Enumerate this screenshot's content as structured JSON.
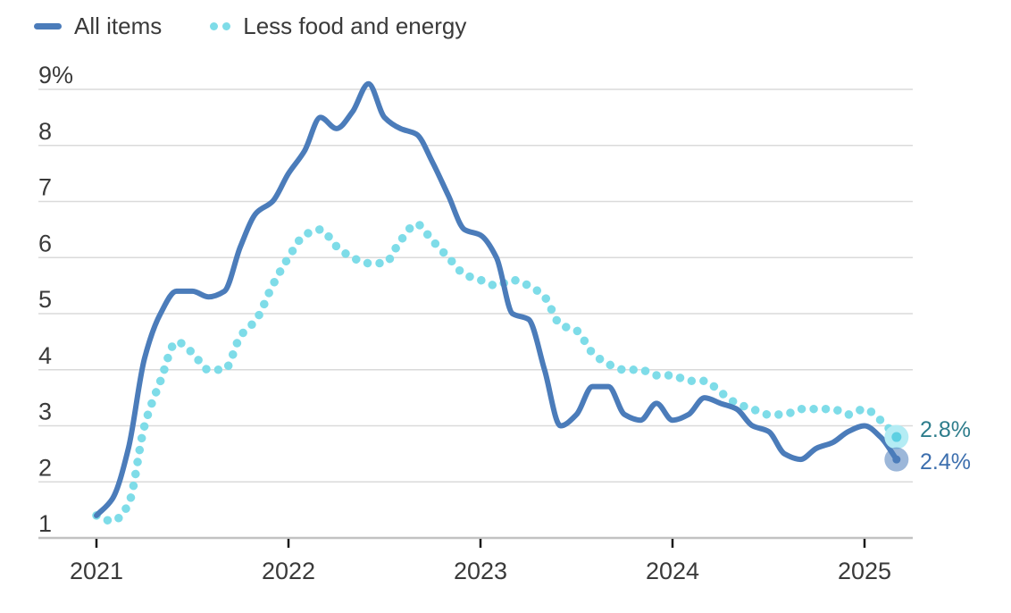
{
  "chart_data": {
    "type": "line",
    "title": "",
    "x": {
      "unit": "month",
      "start": "2021-01",
      "end": "2025-03",
      "n_points": 51,
      "tick_labels": [
        "2021",
        "2022",
        "2023",
        "2024",
        "2025"
      ]
    },
    "y": {
      "min": 1,
      "max": 9,
      "tick_values": [
        1,
        2,
        3,
        4,
        5,
        6,
        7,
        8,
        9
      ],
      "tick_labels": [
        "1",
        "2",
        "3",
        "4",
        "5",
        "6",
        "7",
        "8",
        "9%"
      ],
      "grid": true
    },
    "legend": {
      "position": "top-left"
    },
    "series": [
      {
        "name": "All items",
        "style": "solid",
        "color": "#4b7cba",
        "label_color": "#3d6fae",
        "end_label": "2.4%",
        "end_value": 2.4,
        "values": [
          1.4,
          1.7,
          2.6,
          4.2,
          5.0,
          5.4,
          5.4,
          5.3,
          5.4,
          6.2,
          6.8,
          7.0,
          7.5,
          7.9,
          8.5,
          8.3,
          8.6,
          9.1,
          8.5,
          8.3,
          8.2,
          7.7,
          7.1,
          6.5,
          6.4,
          6.0,
          5.0,
          4.9,
          4.0,
          3.0,
          3.2,
          3.7,
          3.7,
          3.2,
          3.1,
          3.4,
          3.1,
          3.2,
          3.5,
          3.4,
          3.3,
          3.0,
          2.9,
          2.5,
          2.4,
          2.6,
          2.7,
          2.9,
          3.0,
          2.8,
          2.4
        ]
      },
      {
        "name": "Less food and energy",
        "style": "dotted",
        "color": "#7edce8",
        "marker_outer_color": "#b4ecf4",
        "marker_inner_color": "#5ed0e2",
        "label_color": "#2e7d8c",
        "end_label": "2.8%",
        "end_value": 2.8,
        "values": [
          1.4,
          1.3,
          1.6,
          3.0,
          3.8,
          4.5,
          4.3,
          4.0,
          4.0,
          4.6,
          4.9,
          5.5,
          6.0,
          6.4,
          6.5,
          6.2,
          6.0,
          5.9,
          5.9,
          6.3,
          6.6,
          6.3,
          6.0,
          5.7,
          5.6,
          5.5,
          5.6,
          5.5,
          5.3,
          4.8,
          4.7,
          4.3,
          4.1,
          4.0,
          4.0,
          3.9,
          3.9,
          3.8,
          3.8,
          3.6,
          3.4,
          3.3,
          3.2,
          3.2,
          3.3,
          3.3,
          3.3,
          3.2,
          3.3,
          3.1,
          2.8
        ]
      }
    ]
  },
  "colors": {
    "background": "#ffffff",
    "grid": "#dadada",
    "axis_line": "#c2c2c2",
    "tick": "#1a1a1a",
    "axis_text": "#3a3a3a"
  }
}
